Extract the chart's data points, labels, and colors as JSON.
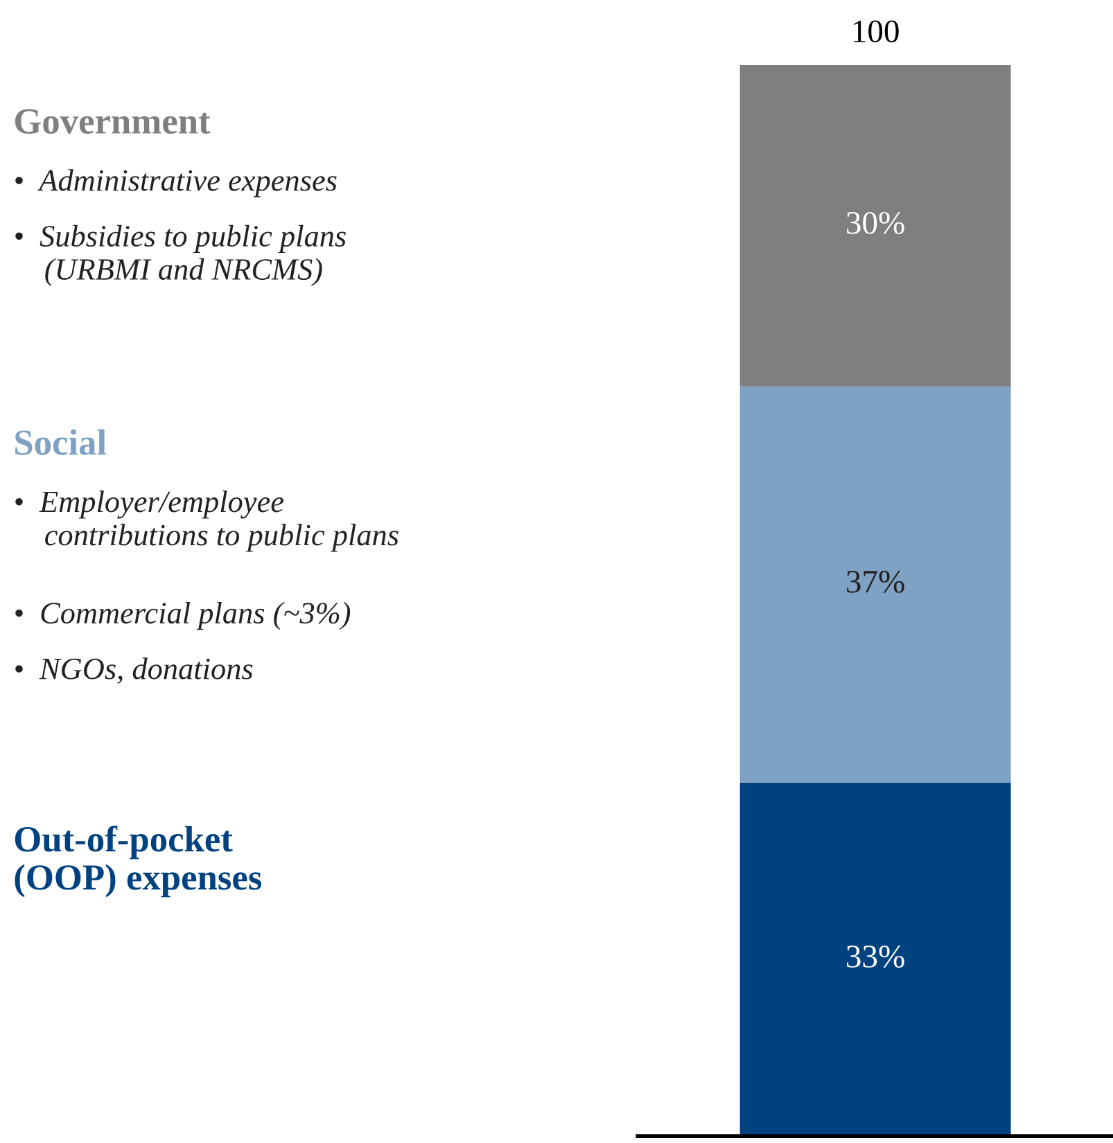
{
  "chart_data": {
    "type": "bar",
    "stacked": true,
    "categories": [
      null
    ],
    "series": [
      {
        "name": "Out-of-pocket\n(OOP) expenses",
        "color": "#00427f",
        "values": [
          33
        ],
        "value_labels": [
          "33%"
        ]
      },
      {
        "name": "Social",
        "color": "#7ea1c4",
        "values": [
          37
        ],
        "value_labels": [
          "37%"
        ]
      },
      {
        "name": "Government",
        "color": "#7f7f7f",
        "values": [
          30
        ],
        "value_labels": [
          "30%"
        ]
      }
    ],
    "totals": [
      "100"
    ],
    "annotations": [
      "•  Administrative expenses",
      "•  Subsidies to public plans\n    (URBMI and NRCMS)",
      "•  Employer/employee\n    contributions to public plans",
      "•  Commercial plans (~3%)",
      "•  NGOs, donations"
    ]
  }
}
